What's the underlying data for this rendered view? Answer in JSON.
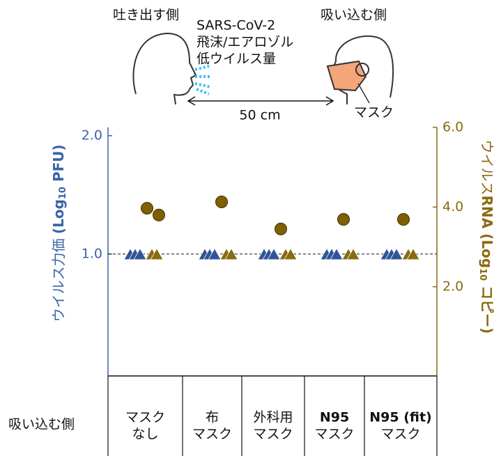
{
  "diagram": {
    "exhale_label": "吐き出す側",
    "virus_lines": [
      "SARS-CoV-2",
      "飛沫/エアロゾル",
      "低ウイルス量"
    ],
    "inhale_label": "吸い込む側",
    "distance": "50 cm",
    "mask_label": "マスク"
  },
  "chart_data": {
    "type": "scatter",
    "row_label": "吸い込む側",
    "categories": [
      [
        "マスク",
        "なし"
      ],
      [
        "布",
        "マスク"
      ],
      [
        "外科用",
        "マスク"
      ],
      [
        "N95",
        "マスク"
      ],
      [
        "N95 (fit)",
        "マスク"
      ]
    ],
    "category_bold": [
      false,
      false,
      false,
      true,
      true
    ],
    "y_label": [
      "ウイルス力価 ",
      "(Log",
      "10",
      " PFU)"
    ],
    "y2_label": [
      "ウイルス",
      "RNA (Log",
      "10",
      " コピー)"
    ],
    "ylim": [
      -0.03,
      2.07
    ],
    "yticks": [
      1,
      2
    ],
    "y2lim": [
      -0.24,
      6.0
    ],
    "y2ticks": [
      {
        "value": 2,
        "label": "2.0"
      },
      {
        "value": 4,
        "label": "4.0"
      },
      {
        "value": 6,
        "label": "6.0"
      }
    ],
    "yticks_labels": [
      "1.0",
      "2.0"
    ],
    "reference_line": 1,
    "series": [
      {
        "marker": "triangle",
        "color": "#2f5597",
        "axis": "y",
        "values": [
          [
            1,
            1,
            1
          ],
          [
            1,
            1,
            1
          ],
          [
            1,
            1,
            1
          ],
          [
            1,
            1,
            1
          ],
          [
            1,
            1,
            1
          ]
        ]
      },
      {
        "marker": "triangle",
        "color": "#8a6a12",
        "axis": "y2",
        "values": [
          [
            2.82,
            2.82
          ],
          [
            2.82,
            2.82
          ],
          [
            2.82,
            2.82
          ],
          [
            2.82,
            2.82
          ],
          [
            2.82,
            2.82
          ]
        ]
      },
      {
        "marker": "circle",
        "color": "#7f6000",
        "axis": "y2",
        "values": [
          [
            3.97,
            3.8
          ],
          [
            4.13
          ],
          [
            3.45
          ],
          [
            3.69
          ],
          [
            3.69
          ]
        ]
      }
    ]
  }
}
